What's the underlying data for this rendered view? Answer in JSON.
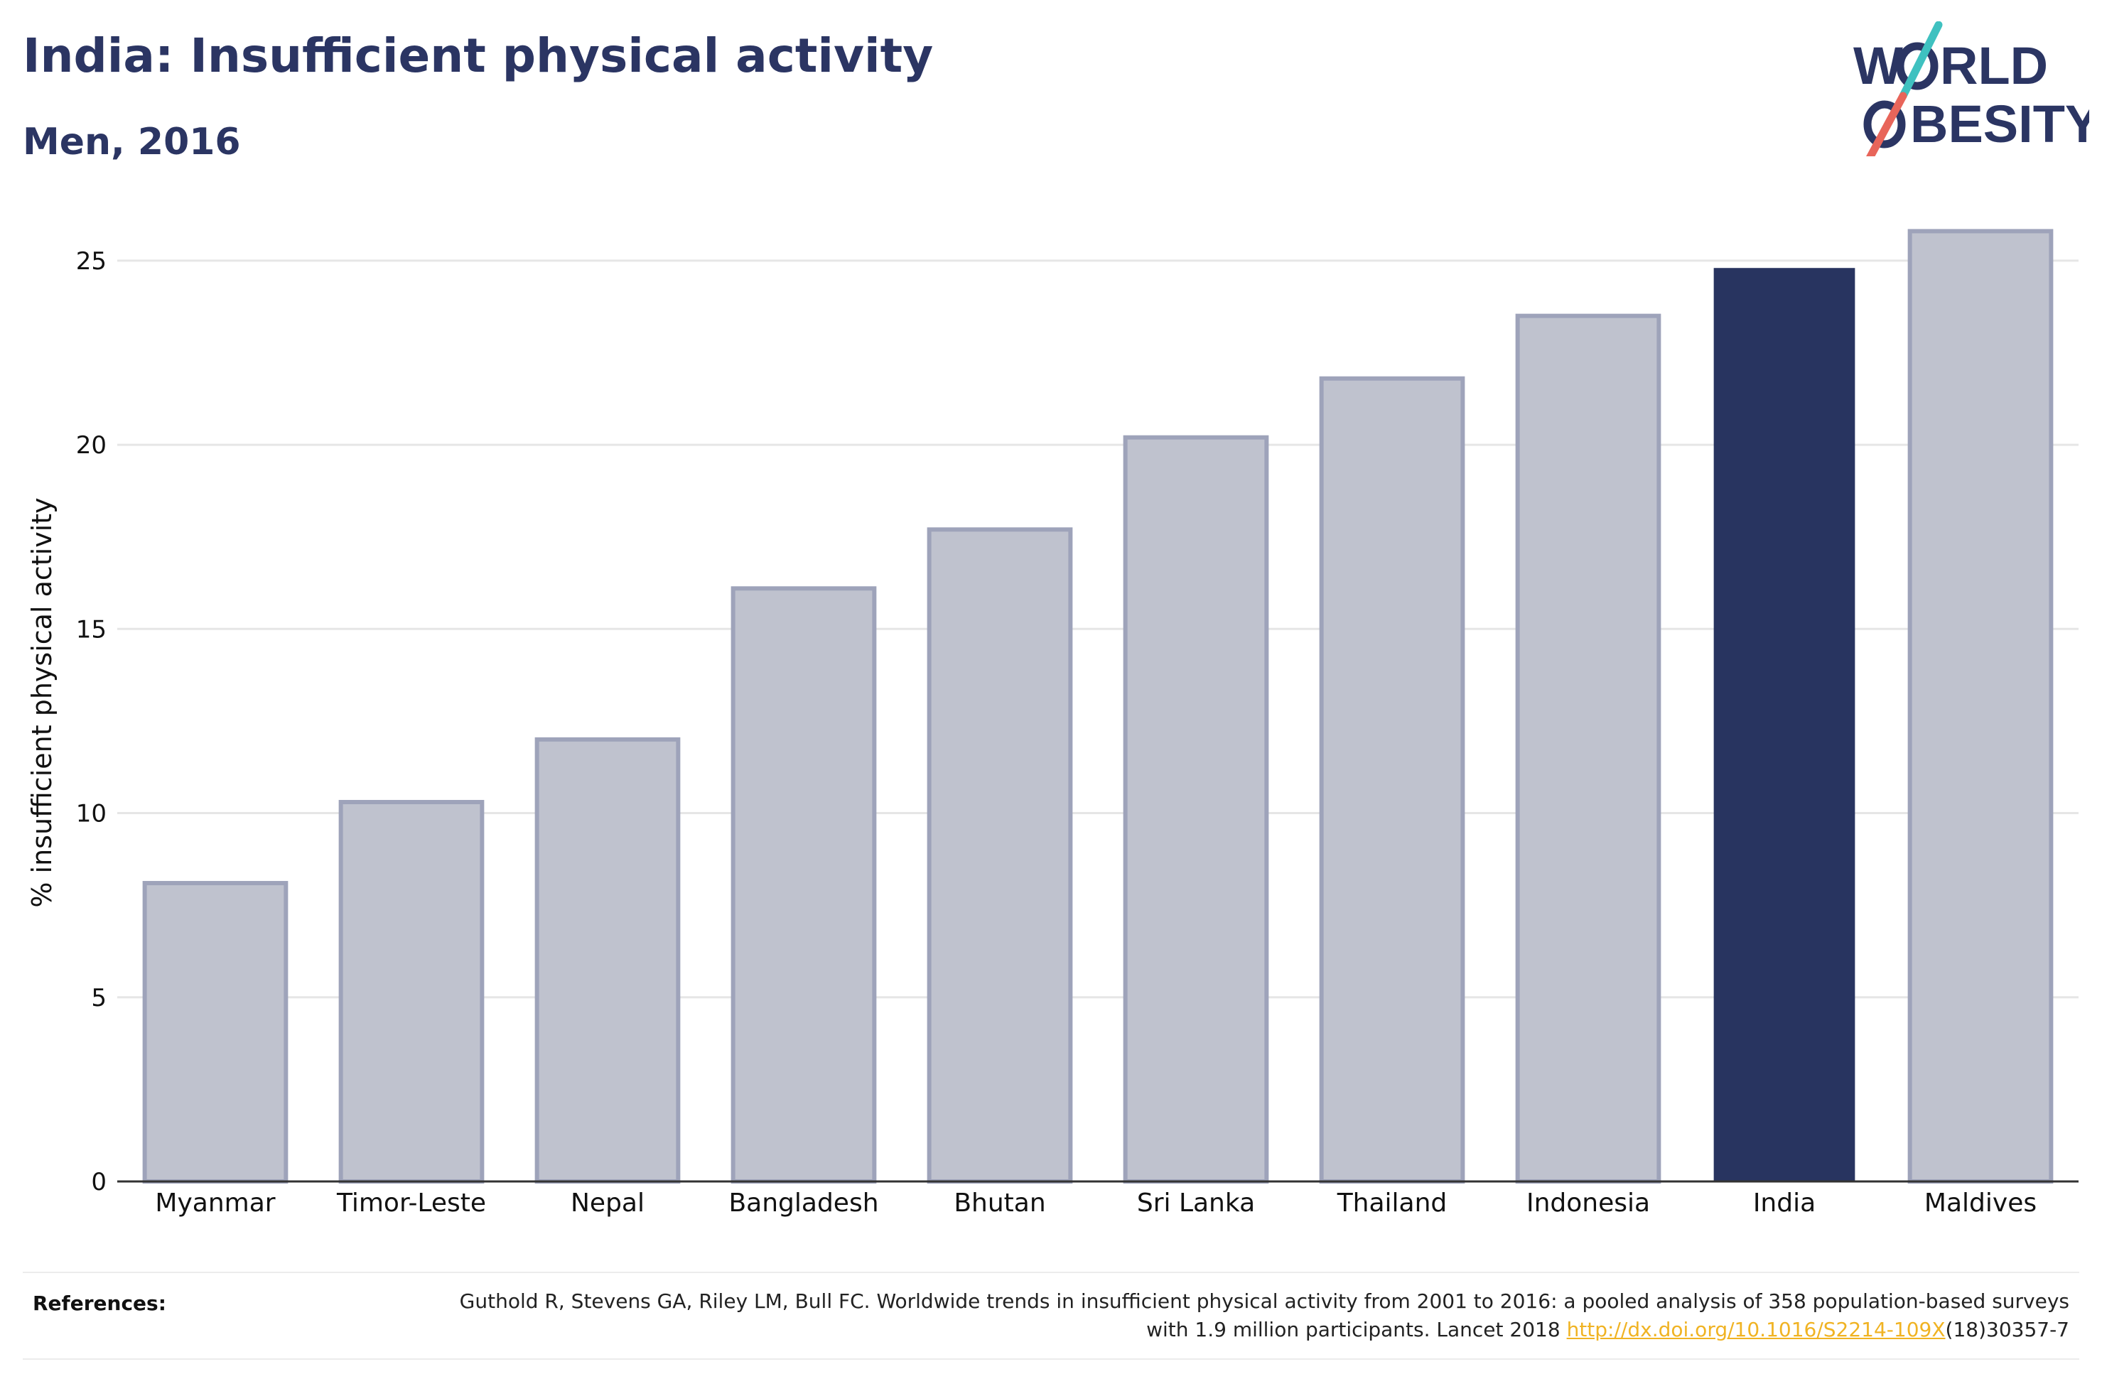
{
  "header": {
    "title": "India: Insufficient physical activity",
    "subtitle": "Men, 2016"
  },
  "logo": {
    "line1": "W",
    "line1_rest": "RLD",
    "line2_rest": "BESITY",
    "slash_colors": [
      "#3fc1c0",
      "#e8655a"
    ],
    "text_color": "#2b3563"
  },
  "chart_data": {
    "type": "bar",
    "categories": [
      "Myanmar",
      "Timor-Leste",
      "Nepal",
      "Bangladesh",
      "Bhutan",
      "Sri Lanka",
      "Thailand",
      "Indonesia",
      "India",
      "Maldives"
    ],
    "values": [
      8.1,
      10.3,
      12.0,
      16.1,
      17.7,
      20.2,
      21.8,
      23.5,
      24.8,
      25.8
    ],
    "highlight": "India",
    "title": "",
    "xlabel": "",
    "ylabel": "% insufficient physical activity",
    "ylim": [
      0,
      26
    ],
    "yticks": [
      0,
      5,
      10,
      15,
      20,
      25
    ],
    "grid": true,
    "colors": {
      "bar": "#bfc2ce",
      "bar_border": "#9ea3ba",
      "highlight": "#283460",
      "grid": "#e6e6e6",
      "axis": "#333333"
    }
  },
  "references": {
    "label": "References:",
    "text_before": "Guthold R, Stevens GA, Riley LM, Bull FC. Worldwide trends in insufficient physical activity from 2001 to 2016: a pooled analysis of 358 population-based surveys with 1.9 million participants. Lancet 2018 ",
    "link": "http://dx.doi.org/10.1016/S2214-109X",
    "text_after": "(18)30357-7"
  }
}
